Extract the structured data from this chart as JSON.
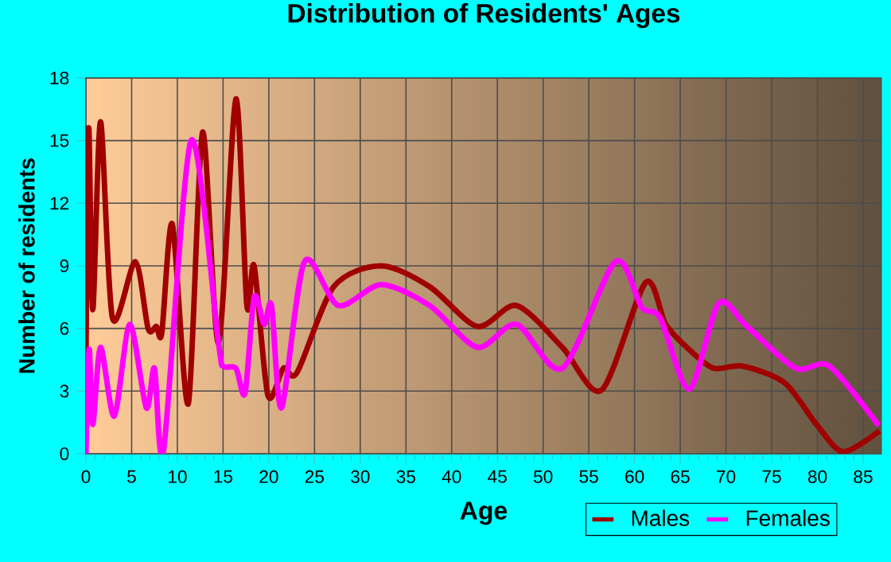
{
  "chart_data": {
    "type": "line",
    "title": "Distribution of Residents' Ages",
    "xlabel": "Age",
    "ylabel": "Number of residents",
    "xlim": [
      0,
      87
    ],
    "ylim": [
      0,
      18
    ],
    "xticks": [
      0,
      5,
      10,
      15,
      20,
      25,
      30,
      35,
      40,
      45,
      50,
      55,
      60,
      65,
      70,
      75,
      80,
      85
    ],
    "yticks": [
      0,
      3,
      6,
      9,
      12,
      15,
      18
    ],
    "grid": true,
    "legend": "bottom right",
    "series": [
      {
        "name": "Males",
        "color": "#a00000",
        "x": [
          0,
          0.3,
          0.75,
          1.6,
          2.9,
          5.4,
          6.8,
          7.7,
          8.3,
          9.45,
          11.2,
          12.75,
          14.5,
          16.4,
          17.6,
          18.4,
          19.9,
          21.6,
          23.1,
          27.1,
          32.3,
          37.6,
          42.8,
          47.1,
          52.1,
          56.4,
          61.2,
          63.4,
          65.7,
          68.6,
          71.8,
          76.4,
          79.9,
          82.8,
          86.8
        ],
        "values": [
          4.2,
          15.6,
          6.9,
          15.9,
          6.5,
          9.2,
          6.0,
          6.1,
          5.8,
          11.0,
          2.4,
          15.4,
          5.3,
          17.0,
          7.1,
          9.0,
          2.8,
          4.1,
          3.9,
          8.0,
          9.0,
          8.0,
          6.1,
          7.1,
          5.1,
          3.05,
          8.2,
          6.2,
          5.1,
          4.1,
          4.2,
          3.4,
          1.4,
          0.1,
          1.1
        ]
      },
      {
        "name": "Females",
        "color": "#ff00ff",
        "x": [
          0,
          0.35,
          0.75,
          1.6,
          3.1,
          4.8,
          6.6,
          7.5,
          8.5,
          11.5,
          14.5,
          15.0,
          16.4,
          17.4,
          18.4,
          19.5,
          20.3,
          21.4,
          23.9,
          27.6,
          32.3,
          37.6,
          42.8,
          47.1,
          52.1,
          57.9,
          60.8,
          62.8,
          66.0,
          69.2,
          72.3,
          77.6,
          81.3,
          86.7
        ],
        "values": [
          0,
          5.0,
          1.4,
          5.1,
          1.8,
          6.2,
          2.2,
          4.1,
          0.2,
          15.0,
          5.3,
          4.2,
          4.1,
          2.9,
          7.5,
          6.2,
          7.1,
          2.2,
          9.2,
          7.1,
          8.1,
          7.1,
          5.1,
          6.2,
          4.1,
          9.2,
          7.0,
          6.5,
          3.1,
          7.2,
          6.1,
          4.1,
          4.2,
          1.35
        ]
      }
    ]
  }
}
